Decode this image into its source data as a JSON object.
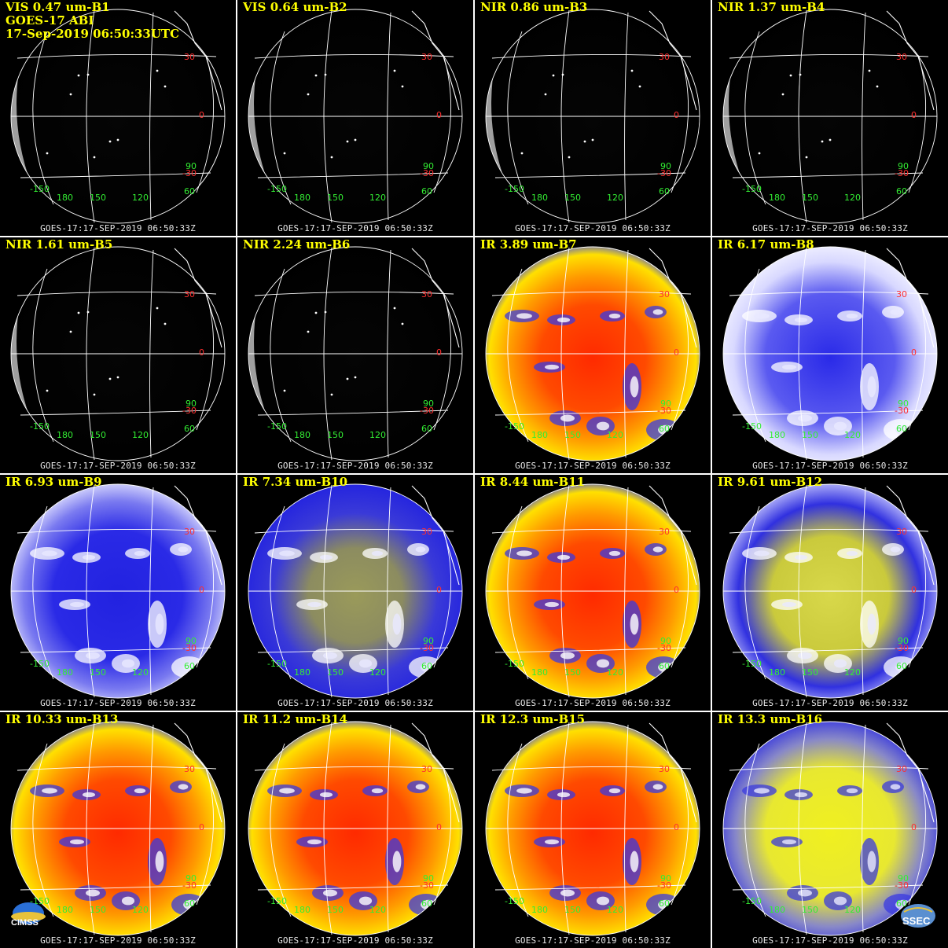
{
  "header": {
    "line2": "GOES-17 ABI",
    "line3": "17-Sep-2019 06:50:33UTC"
  },
  "timestamp": "GOES-17:17-SEP-2019 06:50:33Z",
  "grid_labels": {
    "lat_30": "30",
    "lat_0": "0",
    "lat_m30": "-30",
    "lat_m30b": "-30",
    "lon_m150": "-150",
    "lon_180": "180",
    "lon_150": "150",
    "lon_120": "120",
    "lon_60": "60",
    "lon_90": "90"
  },
  "panels": [
    {
      "title": "VIS 0.47 um-B1",
      "style": "vis"
    },
    {
      "title": "VIS 0.64 um-B2",
      "style": "vis"
    },
    {
      "title": "NIR 0.86 um-B3",
      "style": "vis"
    },
    {
      "title": "NIR 1.37 um-B4",
      "style": "vis"
    },
    {
      "title": "NIR 1.61 um-B5",
      "style": "vis"
    },
    {
      "title": "NIR 2.24 um-B6",
      "style": "vis"
    },
    {
      "title": "IR 3.89 um-B7",
      "style": "warm"
    },
    {
      "title": "IR 6.17 um-B8",
      "style": "wv-white"
    },
    {
      "title": "IR 6.93 um-B9",
      "style": "wv-blue"
    },
    {
      "title": "IR 7.34 um-B10",
      "style": "wv-olive"
    },
    {
      "title": "IR 8.44 um-B11",
      "style": "warm"
    },
    {
      "title": "IR 9.61 um-B12",
      "style": "ozone"
    },
    {
      "title": "IR 10.33 um-B13",
      "style": "warm"
    },
    {
      "title": "IR 11.2 um-B14",
      "style": "warm"
    },
    {
      "title": "IR 12.3 um-B15",
      "style": "warm"
    },
    {
      "title": "IR 13.3 um-B16",
      "style": "co2"
    }
  ],
  "logos": {
    "left": "CIMSS",
    "right": "SSEC"
  },
  "colors": {
    "title": "#ffff00",
    "grid": "#ffffff",
    "lat_label": "#ff3030",
    "lon_label": "#33ee33",
    "divider": "#ffffff"
  }
}
